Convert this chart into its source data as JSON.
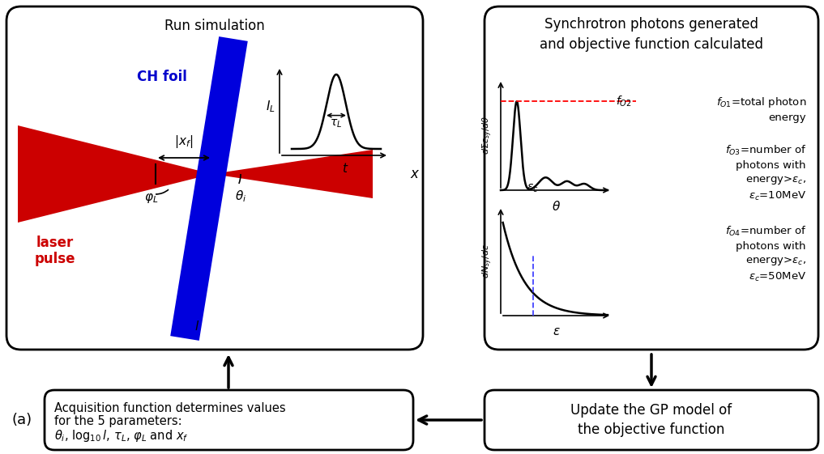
{
  "bg_color": "#ffffff",
  "box_color": "#000000",
  "box_fill": "#ffffff",
  "red_color": "#cc0000",
  "blue_color": "#0000cc",
  "title_fontsize": 12,
  "label_fontsize": 10.5,
  "small_fontsize": 9.5,
  "box1_title": "Run simulation",
  "box2_title": "Synchrotron photons generated\nand objective function calculated",
  "box3_text": "Update the GP model of\nthe objective function",
  "box4_line1": "Acquisition function determines values",
  "box4_line2": "for the 5 parameters:",
  "box4_line3": "$\\theta_i$, $\\log_{10} l$, $\\tau_L$, $\\varphi_L$ and $x_f$",
  "fo1_text": "$f_{O1}$=total photon\nenergy",
  "fo2_label": "$f_{O2}$",
  "fo3_text": "$f_{O3}$=number of\nphotons with\nenergy>$\\varepsilon_c$,\n$\\varepsilon_c$=10MeV",
  "fo4_text": "$f_{O4}$=number of\nphotons with\nenergy>$\\varepsilon_c$,\n$\\varepsilon_c$=50MeV",
  "label_a": "(a)",
  "CH_foil": "CH foil",
  "laser_pulse": "laser\npulse"
}
